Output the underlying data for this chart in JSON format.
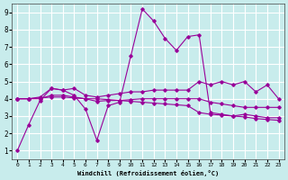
{
  "xlabel": "Windchill (Refroidissement éolien,°C)",
  "bg_color": "#c8ecec",
  "line_color": "#990099",
  "grid_color": "#ffffff",
  "xlim": [
    -0.5,
    23.5
  ],
  "ylim": [
    0.5,
    9.5
  ],
  "xticks": [
    0,
    1,
    2,
    3,
    4,
    5,
    6,
    7,
    8,
    9,
    10,
    11,
    12,
    13,
    14,
    15,
    16,
    17,
    18,
    19,
    20,
    21,
    22,
    23
  ],
  "yticks": [
    1,
    2,
    3,
    4,
    5,
    6,
    7,
    8,
    9
  ],
  "series": [
    [
      1.0,
      2.5,
      3.9,
      4.6,
      4.5,
      4.2,
      3.4,
      1.6,
      3.6,
      3.8,
      6.5,
      9.2,
      8.5,
      7.5,
      6.8,
      7.6,
      7.7,
      3.2,
      3.1,
      3.0,
      3.1,
      3.0,
      2.9,
      2.9
    ],
    [
      4.0,
      4.0,
      4.1,
      4.6,
      4.5,
      4.6,
      4.2,
      4.1,
      4.2,
      4.3,
      4.4,
      4.4,
      4.5,
      4.5,
      4.5,
      4.5,
      5.0,
      4.8,
      5.0,
      4.8,
      5.0,
      4.4,
      4.8,
      4.0
    ],
    [
      4.0,
      4.0,
      4.0,
      4.2,
      4.2,
      4.1,
      4.0,
      3.85,
      3.9,
      3.9,
      3.95,
      4.0,
      4.0,
      4.0,
      4.0,
      4.0,
      4.0,
      3.8,
      3.7,
      3.6,
      3.5,
      3.5,
      3.5,
      3.5
    ],
    [
      4.0,
      4.0,
      4.05,
      4.1,
      4.1,
      4.05,
      4.0,
      4.0,
      3.95,
      3.9,
      3.85,
      3.8,
      3.75,
      3.7,
      3.65,
      3.6,
      3.2,
      3.1,
      3.05,
      3.0,
      2.95,
      2.85,
      2.8,
      2.75
    ]
  ]
}
